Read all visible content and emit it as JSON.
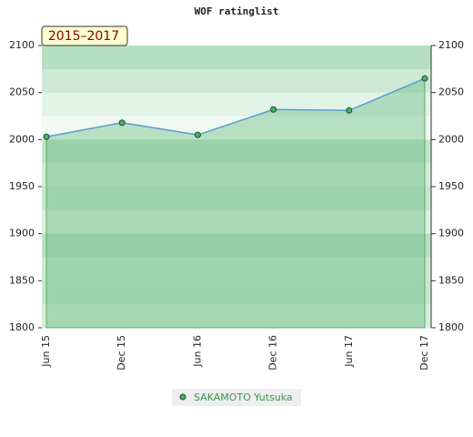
{
  "chart_data": {
    "type": "area-line",
    "title": "WOF ratinglist",
    "badge": "2015–2017",
    "categories": [
      "Jun 15",
      "Dec 15",
      "Jun 16",
      "Dec 16",
      "Jun 17",
      "Dec 17"
    ],
    "series": [
      {
        "name": "SAKAMOTO Yutsuka",
        "color": "#4caf6a",
        "values": [
          2003,
          2018,
          2005,
          2032,
          2031,
          2065
        ]
      }
    ],
    "ylim": [
      1800,
      2100
    ],
    "yticks": [
      1800,
      1850,
      1900,
      1950,
      2000,
      2050,
      2100
    ],
    "y2lim": [
      1800,
      2100
    ],
    "y2ticks": [
      1800,
      1850,
      1900,
      1950,
      2000,
      2050,
      2100
    ]
  }
}
